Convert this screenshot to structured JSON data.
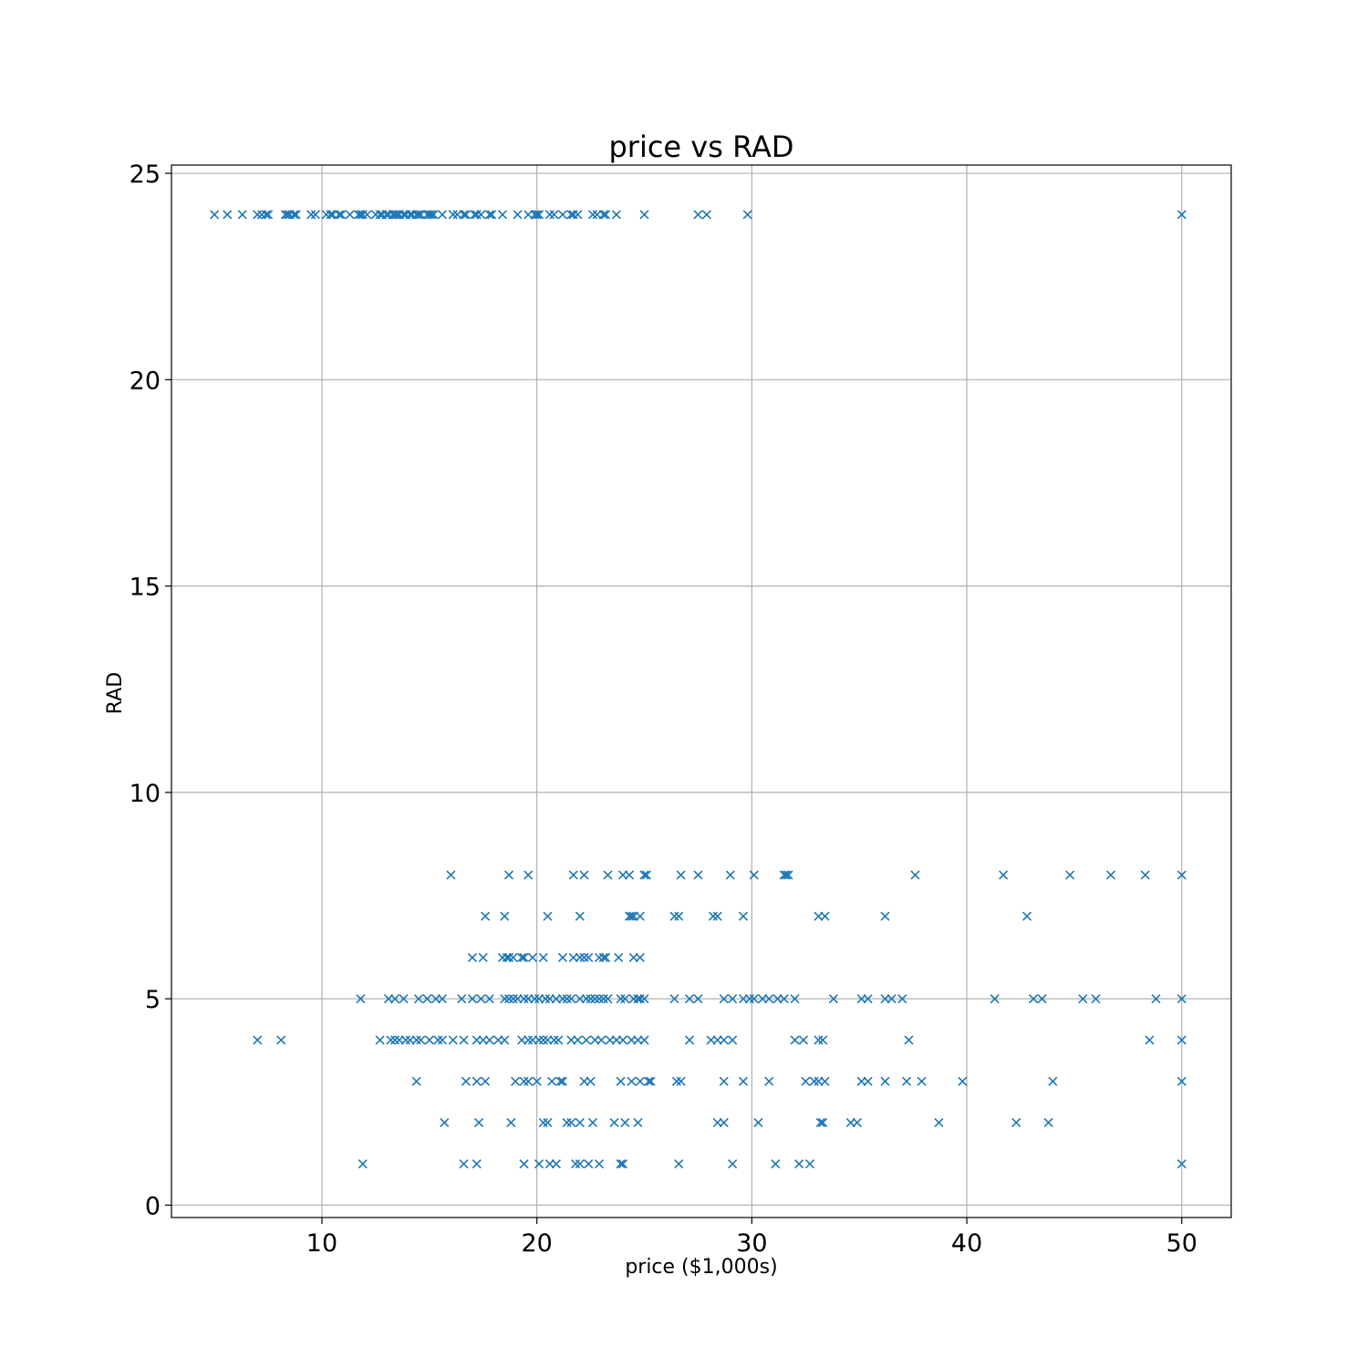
{
  "chart_data": {
    "type": "scatter",
    "title": "price vs RAD",
    "xlabel": "price ($1,000s)",
    "ylabel": "RAD",
    "xlim": [
      3,
      52.3
    ],
    "ylim": [
      -0.3,
      25.2
    ],
    "xticks": [
      10,
      20,
      30,
      40,
      50
    ],
    "yticks": [
      0,
      5,
      10,
      15,
      20,
      25
    ],
    "grid": true,
    "marker": "x",
    "color": "#1f77b4",
    "series": [
      {
        "points": [
          [
            5.0,
            24
          ],
          [
            5.6,
            24
          ],
          [
            6.3,
            24
          ],
          [
            7.0,
            24
          ],
          [
            7.2,
            24
          ],
          [
            7.4,
            24
          ],
          [
            7.5,
            24
          ],
          [
            8.3,
            24
          ],
          [
            8.4,
            24
          ],
          [
            8.5,
            24
          ],
          [
            8.7,
            24
          ],
          [
            8.8,
            24
          ],
          [
            9.5,
            24
          ],
          [
            9.7,
            24
          ],
          [
            10.2,
            24
          ],
          [
            10.4,
            24
          ],
          [
            10.5,
            24
          ],
          [
            10.8,
            24
          ],
          [
            10.9,
            24
          ],
          [
            11.3,
            24
          ],
          [
            11.7,
            24
          ],
          [
            11.8,
            24
          ],
          [
            11.9,
            24
          ],
          [
            12.1,
            24
          ],
          [
            12.5,
            24
          ],
          [
            12.7,
            24
          ],
          [
            12.8,
            24
          ],
          [
            13.0,
            24
          ],
          [
            13.1,
            24
          ],
          [
            13.3,
            24
          ],
          [
            13.4,
            24
          ],
          [
            13.5,
            24
          ],
          [
            13.6,
            24
          ],
          [
            13.8,
            24
          ],
          [
            13.9,
            24
          ],
          [
            14.1,
            24
          ],
          [
            14.2,
            24
          ],
          [
            14.4,
            24
          ],
          [
            14.5,
            24
          ],
          [
            14.6,
            24
          ],
          [
            14.9,
            24
          ],
          [
            15.0,
            24
          ],
          [
            15.1,
            24
          ],
          [
            15.2,
            24
          ],
          [
            15.6,
            24
          ],
          [
            16.1,
            24
          ],
          [
            16.3,
            24
          ],
          [
            16.6,
            24
          ],
          [
            16.7,
            24
          ],
          [
            17.1,
            24
          ],
          [
            17.2,
            24
          ],
          [
            17.4,
            24
          ],
          [
            17.8,
            24
          ],
          [
            17.9,
            24
          ],
          [
            18.4,
            24
          ],
          [
            19.1,
            24
          ],
          [
            19.6,
            24
          ],
          [
            19.9,
            24
          ],
          [
            20.0,
            24
          ],
          [
            20.1,
            24
          ],
          [
            20.6,
            24
          ],
          [
            20.8,
            24
          ],
          [
            21.2,
            24
          ],
          [
            21.6,
            24
          ],
          [
            21.7,
            24
          ],
          [
            21.9,
            24
          ],
          [
            22.6,
            24
          ],
          [
            22.8,
            24
          ],
          [
            23.1,
            24
          ],
          [
            23.2,
            24
          ],
          [
            23.7,
            24
          ],
          [
            25.0,
            24
          ],
          [
            27.5,
            24
          ],
          [
            27.9,
            24
          ],
          [
            29.8,
            24
          ],
          [
            50.0,
            24
          ],
          [
            16.0,
            8
          ],
          [
            18.7,
            8
          ],
          [
            19.6,
            8
          ],
          [
            21.7,
            8
          ],
          [
            22.2,
            8
          ],
          [
            23.3,
            8
          ],
          [
            24.0,
            8
          ],
          [
            24.3,
            8
          ],
          [
            25.0,
            8
          ],
          [
            25.1,
            8
          ],
          [
            26.7,
            8
          ],
          [
            27.5,
            8
          ],
          [
            29.0,
            8
          ],
          [
            30.1,
            8
          ],
          [
            31.5,
            8
          ],
          [
            31.6,
            8
          ],
          [
            31.7,
            8
          ],
          [
            37.6,
            8
          ],
          [
            41.7,
            8
          ],
          [
            44.8,
            8
          ],
          [
            46.7,
            8
          ],
          [
            48.3,
            8
          ],
          [
            50.0,
            8
          ],
          [
            17.6,
            7
          ],
          [
            18.5,
            7
          ],
          [
            20.5,
            7
          ],
          [
            22.0,
            7
          ],
          [
            24.3,
            7
          ],
          [
            24.4,
            7
          ],
          [
            24.5,
            7
          ],
          [
            24.8,
            7
          ],
          [
            26.4,
            7
          ],
          [
            26.6,
            7
          ],
          [
            28.2,
            7
          ],
          [
            28.4,
            7
          ],
          [
            29.6,
            7
          ],
          [
            33.1,
            7
          ],
          [
            33.4,
            7
          ],
          [
            36.2,
            7
          ],
          [
            42.8,
            7
          ],
          [
            17.0,
            6
          ],
          [
            17.5,
            6
          ],
          [
            18.4,
            6
          ],
          [
            18.6,
            6
          ],
          [
            18.7,
            6
          ],
          [
            18.9,
            6
          ],
          [
            19.3,
            6
          ],
          [
            19.4,
            6
          ],
          [
            19.8,
            6
          ],
          [
            20.3,
            6
          ],
          [
            21.2,
            6
          ],
          [
            21.7,
            6
          ],
          [
            22.0,
            6
          ],
          [
            22.2,
            6
          ],
          [
            22.4,
            6
          ],
          [
            22.9,
            6
          ],
          [
            23.1,
            6
          ],
          [
            23.2,
            6
          ],
          [
            23.8,
            6
          ],
          [
            24.5,
            6
          ],
          [
            24.8,
            6
          ],
          [
            11.8,
            5
          ],
          [
            13.1,
            5
          ],
          [
            13.4,
            5
          ],
          [
            13.8,
            5
          ],
          [
            14.5,
            5
          ],
          [
            14.9,
            5
          ],
          [
            15.3,
            5
          ],
          [
            15.6,
            5
          ],
          [
            16.5,
            5
          ],
          [
            17.0,
            5
          ],
          [
            17.4,
            5
          ],
          [
            17.8,
            5
          ],
          [
            18.5,
            5
          ],
          [
            18.7,
            5
          ],
          [
            18.9,
            5
          ],
          [
            19.1,
            5
          ],
          [
            19.4,
            5
          ],
          [
            19.6,
            5
          ],
          [
            19.9,
            5
          ],
          [
            20.1,
            5
          ],
          [
            20.4,
            5
          ],
          [
            20.6,
            5
          ],
          [
            20.9,
            5
          ],
          [
            21.2,
            5
          ],
          [
            21.4,
            5
          ],
          [
            21.6,
            5
          ],
          [
            22.0,
            5
          ],
          [
            22.3,
            5
          ],
          [
            22.5,
            5
          ],
          [
            22.7,
            5
          ],
          [
            22.9,
            5
          ],
          [
            23.1,
            5
          ],
          [
            23.3,
            5
          ],
          [
            23.9,
            5
          ],
          [
            24.1,
            5
          ],
          [
            24.5,
            5
          ],
          [
            24.7,
            5
          ],
          [
            24.8,
            5
          ],
          [
            25.0,
            5
          ],
          [
            26.4,
            5
          ],
          [
            27.1,
            5
          ],
          [
            27.5,
            5
          ],
          [
            28.7,
            5
          ],
          [
            29.1,
            5
          ],
          [
            29.6,
            5
          ],
          [
            29.9,
            5
          ],
          [
            30.1,
            5
          ],
          [
            30.5,
            5
          ],
          [
            30.8,
            5
          ],
          [
            31.2,
            5
          ],
          [
            31.5,
            5
          ],
          [
            32.0,
            5
          ],
          [
            33.8,
            5
          ],
          [
            35.1,
            5
          ],
          [
            35.4,
            5
          ],
          [
            36.2,
            5
          ],
          [
            36.5,
            5
          ],
          [
            37.0,
            5
          ],
          [
            41.3,
            5
          ],
          [
            43.1,
            5
          ],
          [
            43.5,
            5
          ],
          [
            45.4,
            5
          ],
          [
            46.0,
            5
          ],
          [
            48.8,
            5
          ],
          [
            50.0,
            5
          ],
          [
            7.0,
            4
          ],
          [
            8.1,
            4
          ],
          [
            12.7,
            4
          ],
          [
            13.2,
            4
          ],
          [
            13.4,
            4
          ],
          [
            13.6,
            4
          ],
          [
            13.9,
            4
          ],
          [
            14.1,
            4
          ],
          [
            14.4,
            4
          ],
          [
            14.6,
            4
          ],
          [
            15.0,
            4
          ],
          [
            15.4,
            4
          ],
          [
            15.6,
            4
          ],
          [
            16.1,
            4
          ],
          [
            16.6,
            4
          ],
          [
            17.2,
            4
          ],
          [
            17.5,
            4
          ],
          [
            17.8,
            4
          ],
          [
            18.2,
            4
          ],
          [
            18.5,
            4
          ],
          [
            19.3,
            4
          ],
          [
            19.6,
            4
          ],
          [
            19.8,
            4
          ],
          [
            20.1,
            4
          ],
          [
            20.3,
            4
          ],
          [
            20.5,
            4
          ],
          [
            20.8,
            4
          ],
          [
            21.0,
            4
          ],
          [
            21.6,
            4
          ],
          [
            21.9,
            4
          ],
          [
            22.3,
            4
          ],
          [
            22.7,
            4
          ],
          [
            23.0,
            4
          ],
          [
            23.4,
            4
          ],
          [
            23.7,
            4
          ],
          [
            24.0,
            4
          ],
          [
            24.4,
            4
          ],
          [
            24.7,
            4
          ],
          [
            25.0,
            4
          ],
          [
            27.1,
            4
          ],
          [
            28.1,
            4
          ],
          [
            28.4,
            4
          ],
          [
            28.7,
            4
          ],
          [
            29.1,
            4
          ],
          [
            32.0,
            4
          ],
          [
            32.4,
            4
          ],
          [
            33.1,
            4
          ],
          [
            33.3,
            4
          ],
          [
            37.3,
            4
          ],
          [
            48.5,
            4
          ],
          [
            50.0,
            4
          ],
          [
            14.4,
            3
          ],
          [
            16.7,
            3
          ],
          [
            17.2,
            3
          ],
          [
            17.6,
            3
          ],
          [
            19.0,
            3
          ],
          [
            19.4,
            3
          ],
          [
            19.6,
            3
          ],
          [
            20.0,
            3
          ],
          [
            20.7,
            3
          ],
          [
            21.1,
            3
          ],
          [
            21.2,
            3
          ],
          [
            22.2,
            3
          ],
          [
            22.5,
            3
          ],
          [
            23.9,
            3
          ],
          [
            24.4,
            3
          ],
          [
            24.8,
            3
          ],
          [
            25.2,
            3
          ],
          [
            25.3,
            3
          ],
          [
            26.5,
            3
          ],
          [
            26.7,
            3
          ],
          [
            28.7,
            3
          ],
          [
            29.6,
            3
          ],
          [
            30.8,
            3
          ],
          [
            32.5,
            3
          ],
          [
            32.9,
            3
          ],
          [
            33.1,
            3
          ],
          [
            33.4,
            3
          ],
          [
            35.1,
            3
          ],
          [
            35.4,
            3
          ],
          [
            36.2,
            3
          ],
          [
            37.2,
            3
          ],
          [
            37.9,
            3
          ],
          [
            39.8,
            3
          ],
          [
            44.0,
            3
          ],
          [
            50.0,
            3
          ],
          [
            15.7,
            2
          ],
          [
            17.3,
            2
          ],
          [
            18.8,
            2
          ],
          [
            20.3,
            2
          ],
          [
            20.5,
            2
          ],
          [
            21.4,
            2
          ],
          [
            21.6,
            2
          ],
          [
            22.0,
            2
          ],
          [
            22.6,
            2
          ],
          [
            23.6,
            2
          ],
          [
            24.1,
            2
          ],
          [
            24.7,
            2
          ],
          [
            28.4,
            2
          ],
          [
            28.7,
            2
          ],
          [
            30.3,
            2
          ],
          [
            33.2,
            2
          ],
          [
            33.3,
            2
          ],
          [
            34.6,
            2
          ],
          [
            34.9,
            2
          ],
          [
            38.7,
            2
          ],
          [
            42.3,
            2
          ],
          [
            43.8,
            2
          ],
          [
            11.9,
            1
          ],
          [
            16.6,
            1
          ],
          [
            17.2,
            1
          ],
          [
            19.4,
            1
          ],
          [
            20.1,
            1
          ],
          [
            20.6,
            1
          ],
          [
            20.9,
            1
          ],
          [
            21.8,
            1
          ],
          [
            22.0,
            1
          ],
          [
            22.4,
            1
          ],
          [
            22.9,
            1
          ],
          [
            23.9,
            1
          ],
          [
            24.0,
            1
          ],
          [
            26.6,
            1
          ],
          [
            29.1,
            1
          ],
          [
            31.1,
            1
          ],
          [
            32.2,
            1
          ],
          [
            32.7,
            1
          ],
          [
            50.0,
            1
          ]
        ]
      }
    ]
  }
}
